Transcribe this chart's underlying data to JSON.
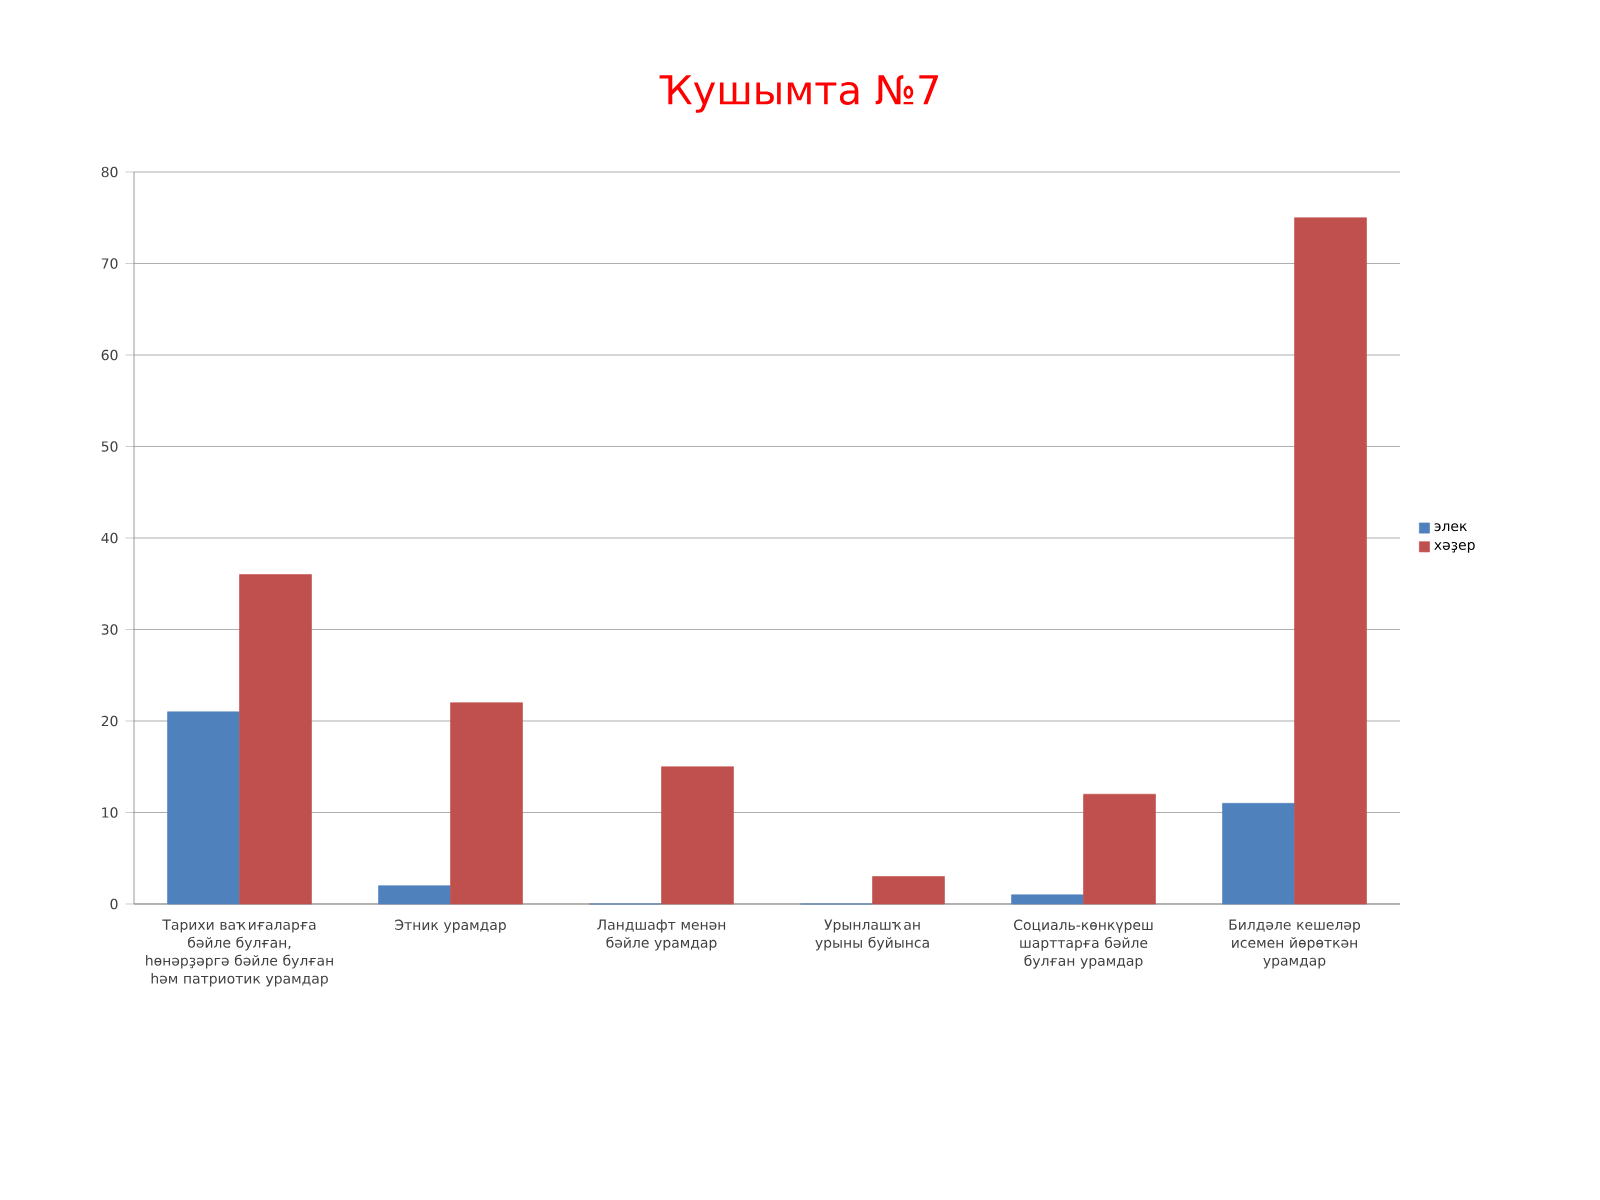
{
  "chart_data": {
    "type": "bar",
    "title": "Ҡушымта №7",
    "categories": [
      "Тарихи ваҡиғаларға бәйле булған, һөнәрҙәргә бәйле булған һәм патриотик урамдар",
      "Этник урамдар",
      "Ландшафт менән бәйле урамдар",
      "Урынлашҡан урыны буйынса",
      "Социаль-көнкүреш шарттарға бәйле булған урамдар",
      "Билдәле кешеләр исемен йөрөткән урамдар"
    ],
    "series": [
      {
        "name": "элек",
        "color": "#4f81bd",
        "values": [
          21,
          2,
          0,
          0,
          1,
          11
        ]
      },
      {
        "name": "хәҙер",
        "color": "#c0504d",
        "values": [
          36,
          22,
          15,
          3,
          12,
          75
        ]
      }
    ],
    "ylim": [
      0,
      80
    ],
    "yticks": [
      0,
      10,
      20,
      30,
      40,
      50,
      60,
      70,
      80
    ],
    "grid": "y",
    "legend": "right"
  }
}
